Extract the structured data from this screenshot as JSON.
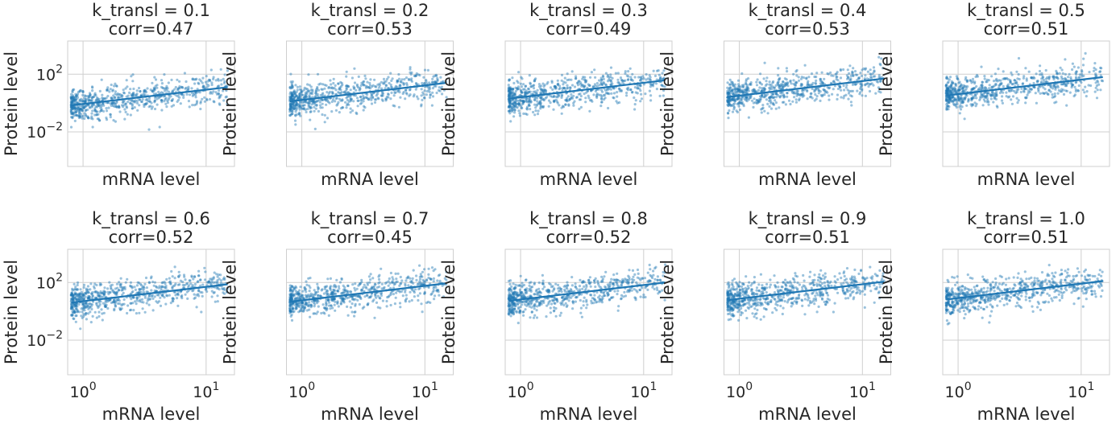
{
  "figure": {
    "x_label": "mRNA level",
    "y_label": "Protein level"
  },
  "chart_data": [
    {
      "type": "scatter",
      "title_line1": "k_transl = 0.1",
      "title_line2": "corr=0.47",
      "k": 0.1,
      "corr": 0.47,
      "xscale": "log",
      "yscale": "log",
      "xlim": [
        0.75,
        17
      ],
      "ylim": [
        4e-05,
        20000
      ],
      "xticks": [
        {
          "value": 1,
          "label": "10^0"
        },
        {
          "value": 10,
          "label": "10^1"
        }
      ],
      "yticks": [
        {
          "value": 0.01,
          "label": "10^-2"
        },
        {
          "value": 100,
          "label": "10^2"
        }
      ],
      "fit": {
        "x": [
          0.8,
          15
        ],
        "y": [
          0.7,
          12.5
        ]
      },
      "n_points": 700,
      "grid": true
    },
    {
      "type": "scatter",
      "title_line1": "k_transl = 0.2",
      "title_line2": "corr=0.53",
      "k": 0.2,
      "corr": 0.53,
      "xscale": "log",
      "yscale": "log",
      "xlim": [
        0.75,
        17
      ],
      "ylim": [
        4e-05,
        20000
      ],
      "xticks": [
        {
          "value": 1,
          "label": "10^0"
        },
        {
          "value": 10,
          "label": "10^1"
        }
      ],
      "yticks": [
        {
          "value": 0.01,
          "label": "10^-2"
        },
        {
          "value": 100,
          "label": "10^2"
        }
      ],
      "fit": {
        "x": [
          0.8,
          15
        ],
        "y": [
          1.3,
          25
        ]
      },
      "n_points": 700,
      "grid": true
    },
    {
      "type": "scatter",
      "title_line1": "k_transl = 0.3",
      "title_line2": "corr=0.49",
      "k": 0.3,
      "corr": 0.49,
      "xscale": "log",
      "yscale": "log",
      "xlim": [
        0.75,
        17
      ],
      "ylim": [
        4e-05,
        20000
      ],
      "xticks": [
        {
          "value": 1,
          "label": "10^0"
        },
        {
          "value": 10,
          "label": "10^1"
        }
      ],
      "yticks": [
        {
          "value": 0.01,
          "label": "10^-2"
        },
        {
          "value": 100,
          "label": "10^2"
        }
      ],
      "fit": {
        "x": [
          0.8,
          15
        ],
        "y": [
          2.0,
          38
        ]
      },
      "n_points": 700,
      "grid": true
    },
    {
      "type": "scatter",
      "title_line1": "k_transl = 0.4",
      "title_line2": "corr=0.53",
      "k": 0.4,
      "corr": 0.53,
      "xscale": "log",
      "yscale": "log",
      "xlim": [
        0.75,
        17
      ],
      "ylim": [
        4e-05,
        20000
      ],
      "xticks": [
        {
          "value": 1,
          "label": "10^0"
        },
        {
          "value": 10,
          "label": "10^1"
        }
      ],
      "yticks": [
        {
          "value": 0.01,
          "label": "10^-2"
        },
        {
          "value": 100,
          "label": "10^2"
        }
      ],
      "fit": {
        "x": [
          0.8,
          15
        ],
        "y": [
          2.6,
          50
        ]
      },
      "n_points": 700,
      "grid": true
    },
    {
      "type": "scatter",
      "title_line1": "k_transl = 0.5",
      "title_line2": "corr=0.51",
      "k": 0.5,
      "corr": 0.51,
      "xscale": "log",
      "yscale": "log",
      "xlim": [
        0.75,
        17
      ],
      "ylim": [
        4e-05,
        20000
      ],
      "xticks": [
        {
          "value": 1,
          "label": "10^0"
        },
        {
          "value": 10,
          "label": "10^1"
        }
      ],
      "yticks": [
        {
          "value": 0.01,
          "label": "10^-2"
        },
        {
          "value": 100,
          "label": "10^2"
        }
      ],
      "fit": {
        "x": [
          0.8,
          15
        ],
        "y": [
          3.3,
          63
        ]
      },
      "n_points": 700,
      "grid": true
    },
    {
      "type": "scatter",
      "title_line1": "k_transl = 0.6",
      "title_line2": "corr=0.52",
      "k": 0.6,
      "corr": 0.52,
      "xscale": "log",
      "yscale": "log",
      "xlim": [
        0.75,
        17
      ],
      "ylim": [
        4e-05,
        20000
      ],
      "xticks": [
        {
          "value": 1,
          "label": "10^0"
        },
        {
          "value": 10,
          "label": "10^1"
        }
      ],
      "yticks": [
        {
          "value": 0.01,
          "label": "10^-2"
        },
        {
          "value": 100,
          "label": "10^2"
        }
      ],
      "fit": {
        "x": [
          0.8,
          15
        ],
        "y": [
          4.0,
          75
        ]
      },
      "n_points": 700,
      "grid": true
    },
    {
      "type": "scatter",
      "title_line1": "k_transl = 0.7",
      "title_line2": "corr=0.45",
      "k": 0.7,
      "corr": 0.45,
      "xscale": "log",
      "yscale": "log",
      "xlim": [
        0.75,
        17
      ],
      "ylim": [
        4e-05,
        20000
      ],
      "xticks": [
        {
          "value": 1,
          "label": "10^0"
        },
        {
          "value": 10,
          "label": "10^1"
        }
      ],
      "yticks": [
        {
          "value": 0.01,
          "label": "10^-2"
        },
        {
          "value": 100,
          "label": "10^2"
        }
      ],
      "fit": {
        "x": [
          0.8,
          15
        ],
        "y": [
          4.6,
          88
        ]
      },
      "n_points": 700,
      "grid": true
    },
    {
      "type": "scatter",
      "title_line1": "k_transl = 0.8",
      "title_line2": "corr=0.52",
      "k": 0.8,
      "corr": 0.52,
      "xscale": "log",
      "yscale": "log",
      "xlim": [
        0.75,
        17
      ],
      "ylim": [
        4e-05,
        20000
      ],
      "xticks": [
        {
          "value": 1,
          "label": "10^0"
        },
        {
          "value": 10,
          "label": "10^1"
        }
      ],
      "yticks": [
        {
          "value": 0.01,
          "label": "10^-2"
        },
        {
          "value": 100,
          "label": "10^2"
        }
      ],
      "fit": {
        "x": [
          0.8,
          15
        ],
        "y": [
          5.3,
          100
        ]
      },
      "n_points": 700,
      "grid": true
    },
    {
      "type": "scatter",
      "title_line1": "k_transl = 0.9",
      "title_line2": "corr=0.51",
      "k": 0.9,
      "corr": 0.51,
      "xscale": "log",
      "yscale": "log",
      "xlim": [
        0.75,
        17
      ],
      "ylim": [
        4e-05,
        20000
      ],
      "xticks": [
        {
          "value": 1,
          "label": "10^0"
        },
        {
          "value": 10,
          "label": "10^1"
        }
      ],
      "yticks": [
        {
          "value": 0.01,
          "label": "10^-2"
        },
        {
          "value": 100,
          "label": "10^2"
        }
      ],
      "fit": {
        "x": [
          0.8,
          15
        ],
        "y": [
          6.0,
          113
        ]
      },
      "n_points": 700,
      "grid": true
    },
    {
      "type": "scatter",
      "title_line1": "k_transl = 1.0",
      "title_line2": "corr=0.51",
      "k": 1.0,
      "corr": 0.51,
      "xscale": "log",
      "yscale": "log",
      "xlim": [
        0.75,
        17
      ],
      "ylim": [
        4e-05,
        20000
      ],
      "xticks": [
        {
          "value": 1,
          "label": "10^0"
        },
        {
          "value": 10,
          "label": "10^1"
        }
      ],
      "yticks": [
        {
          "value": 0.01,
          "label": "10^-2"
        },
        {
          "value": 100,
          "label": "10^2"
        }
      ],
      "fit": {
        "x": [
          0.8,
          15
        ],
        "y": [
          6.6,
          125
        ]
      },
      "n_points": 700,
      "grid": true
    }
  ]
}
